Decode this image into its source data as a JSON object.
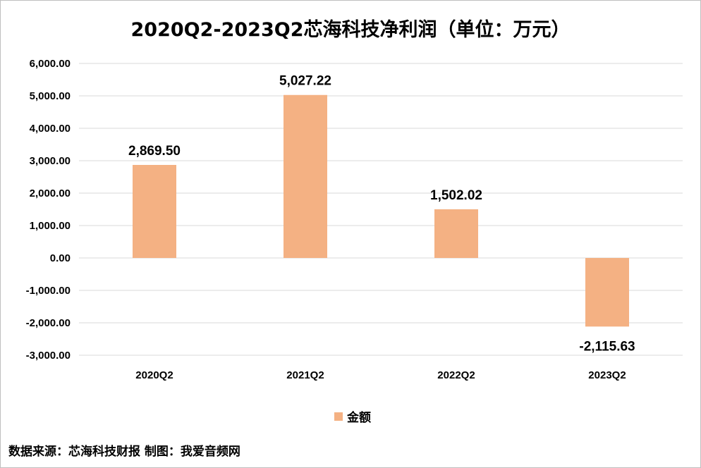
{
  "chart_data": {
    "type": "bar",
    "title": "2020Q2-2023Q2芯海科技净利润（单位：万元）",
    "categories": [
      "2020Q2",
      "2021Q2",
      "2022Q2",
      "2023Q2"
    ],
    "series": [
      {
        "name": "金额",
        "values": [
          2869.5,
          5027.22,
          1502.02,
          -2115.63
        ]
      }
    ],
    "data_labels": [
      "2,869.50",
      "5,027.22",
      "1,502.02",
      "-2,115.63"
    ],
    "y_ticks": [
      "6,000.00",
      "5,000.00",
      "4,000.00",
      "3,000.00",
      "2,000.00",
      "1,000.00",
      "0.00",
      "-1,000.00",
      "-2,000.00",
      "-3,000.00"
    ],
    "ylim": [
      -3000,
      6000
    ],
    "grid": true,
    "legend": "bottom",
    "xlabel": "",
    "ylabel": "",
    "bar_color": "#F4B183"
  },
  "footer": "数据来源：芯海科技财报  制图：我爱音频网"
}
